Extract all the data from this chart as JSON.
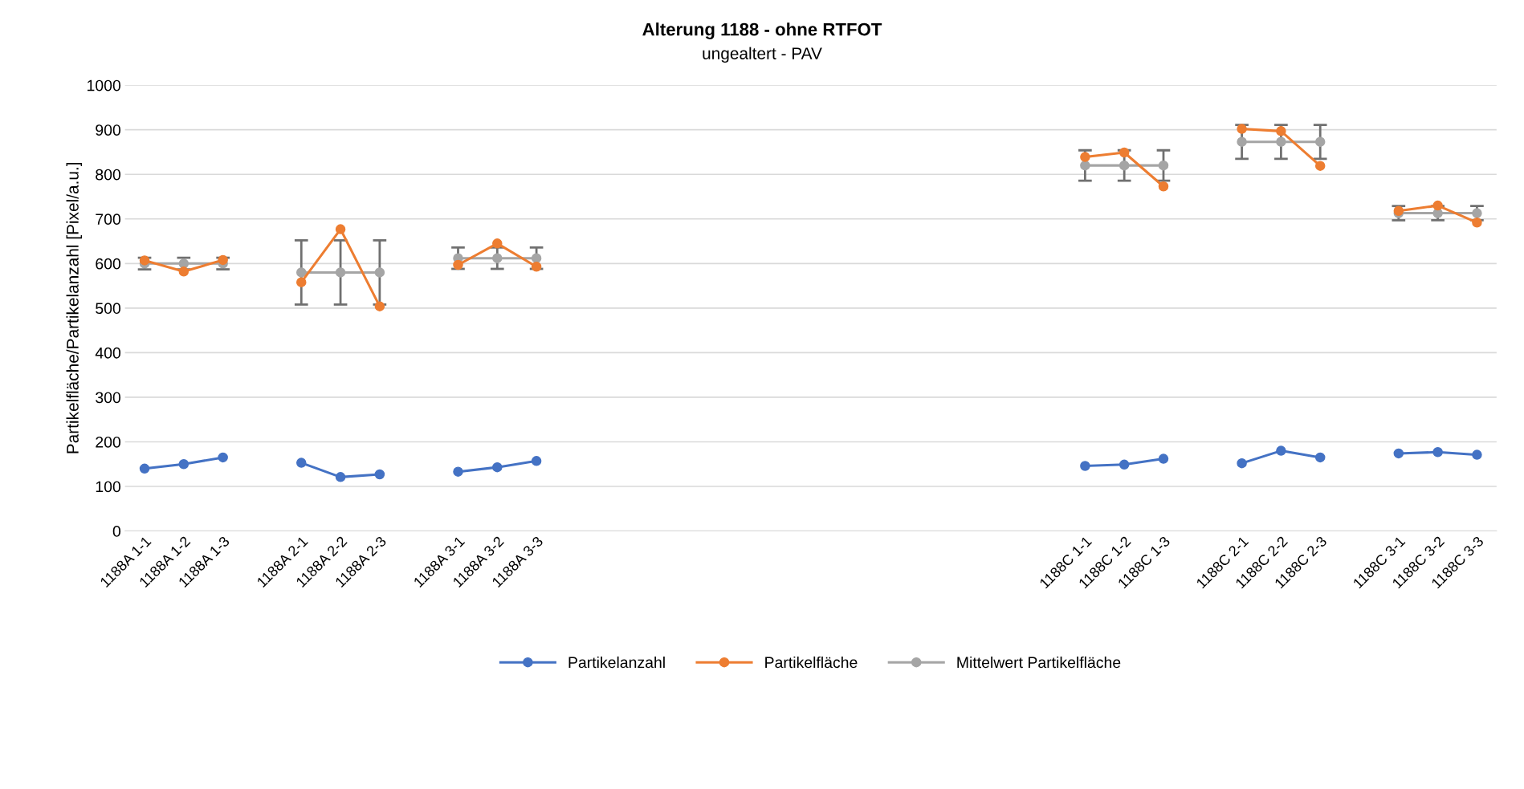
{
  "chart_data": {
    "type": "line",
    "title": "Alterung 1188 - ohne RTFOT",
    "subtitle": "ungealtert - PAV",
    "ylabel": "Partikelfläche/Partikelanzahl [Pixel/a.u.]",
    "categories": [
      "1188A 1-1",
      "1188A 1-2",
      "1188A 1-3",
      null,
      "1188A 2-1",
      "1188A 2-2",
      "1188A 2-3",
      null,
      "1188A 3-1",
      "1188A 3-2",
      "1188A 3-3",
      null,
      null,
      null,
      null,
      null,
      null,
      null,
      null,
      null,
      null,
      null,
      null,
      null,
      "1188C 1-1",
      "1188C 1-2",
      "1188C 1-3",
      null,
      "1188C 2-1",
      "1188C 2-2",
      "1188C 2-3",
      null,
      "1188C 3-1",
      "1188C 3-2",
      "1188C 3-3"
    ],
    "series": [
      {
        "name": "Partikelanzahl",
        "color": "#4472c4",
        "values": [
          140,
          150,
          165,
          null,
          153,
          121,
          127,
          null,
          133,
          143,
          157,
          null,
          null,
          null,
          null,
          null,
          null,
          null,
          null,
          null,
          null,
          null,
          null,
          null,
          146,
          149,
          162,
          null,
          152,
          180,
          165,
          null,
          174,
          177,
          171
        ]
      },
      {
        "name": "Partikelfläche",
        "color": "#ed7d31",
        "values": [
          607,
          582,
          608,
          null,
          558,
          677,
          504,
          null,
          597,
          645,
          593,
          null,
          null,
          null,
          null,
          null,
          null,
          null,
          null,
          null,
          null,
          null,
          null,
          null,
          839,
          849,
          773,
          null,
          902,
          897,
          819,
          null,
          718,
          730,
          692
        ]
      },
      {
        "name": "Mittelwert Partikelfläche",
        "color": "#a5a5a5",
        "values": [
          600,
          600,
          600,
          null,
          580,
          580,
          580,
          null,
          612,
          612,
          612,
          null,
          null,
          null,
          null,
          null,
          null,
          null,
          null,
          null,
          null,
          null,
          null,
          null,
          820,
          820,
          820,
          null,
          873,
          873,
          873,
          null,
          713,
          713,
          713
        ],
        "errors": [
          13,
          13,
          13,
          null,
          72,
          72,
          72,
          null,
          24,
          24,
          24,
          null,
          null,
          null,
          null,
          null,
          null,
          null,
          null,
          null,
          null,
          null,
          null,
          null,
          34,
          34,
          34,
          null,
          38,
          38,
          38,
          null,
          16,
          16,
          16
        ]
      }
    ],
    "ylim": [
      0,
      1000
    ],
    "yticks": [
      0,
      100,
      200,
      300,
      400,
      500,
      600,
      700,
      800,
      900,
      1000
    ],
    "grid": "y",
    "legend": "bottom",
    "marker": "circle",
    "line_style": "solid"
  }
}
